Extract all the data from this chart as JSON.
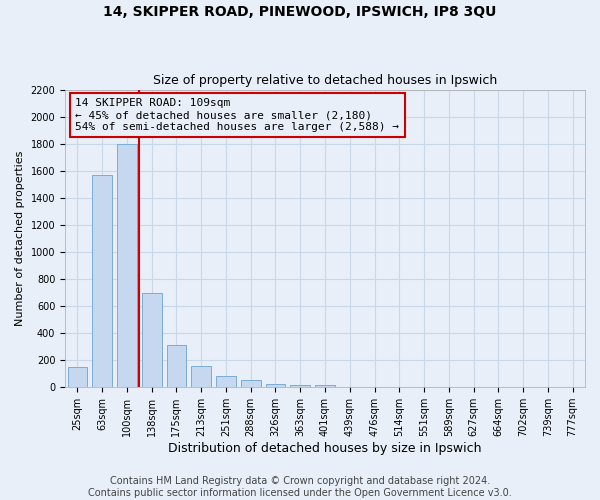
{
  "title": "14, SKIPPER ROAD, PINEWOOD, IPSWICH, IP8 3QU",
  "subtitle": "Size of property relative to detached houses in Ipswich",
  "xlabel": "Distribution of detached houses by size in Ipswich",
  "ylabel": "Number of detached properties",
  "bar_values": [
    150,
    1570,
    1800,
    700,
    310,
    160,
    80,
    50,
    25,
    20,
    15,
    5,
    5,
    0,
    0,
    0,
    0,
    0,
    0,
    0,
    0
  ],
  "categories": [
    "25sqm",
    "63sqm",
    "100sqm",
    "138sqm",
    "175sqm",
    "213sqm",
    "251sqm",
    "288sqm",
    "326sqm",
    "363sqm",
    "401sqm",
    "439sqm",
    "476sqm",
    "514sqm",
    "551sqm",
    "589sqm",
    "627sqm",
    "664sqm",
    "702sqm",
    "739sqm",
    "777sqm"
  ],
  "bar_color": "#c5d8ef",
  "bar_edge_color": "#7aadd4",
  "vline_pos": 2.5,
  "vline_color": "#cc0000",
  "annotation_text": "14 SKIPPER ROAD: 109sqm\n← 45% of detached houses are smaller (2,180)\n54% of semi-detached houses are larger (2,588) →",
  "annotation_box_color": "#cc0000",
  "annotation_box_fill": "#e8eff8",
  "ylim": [
    0,
    2200
  ],
  "yticks": [
    0,
    200,
    400,
    600,
    800,
    1000,
    1200,
    1400,
    1600,
    1800,
    2000,
    2200
  ],
  "footer_line1": "Contains HM Land Registry data © Crown copyright and database right 2024.",
  "footer_line2": "Contains public sector information licensed under the Open Government Licence v3.0.",
  "background_color": "#e8eff8",
  "grid_color": "#c8d8e8",
  "title_fontsize": 10,
  "subtitle_fontsize": 9,
  "xlabel_fontsize": 9,
  "ylabel_fontsize": 8,
  "tick_fontsize": 7,
  "annotation_fontsize": 8,
  "footer_fontsize": 7
}
